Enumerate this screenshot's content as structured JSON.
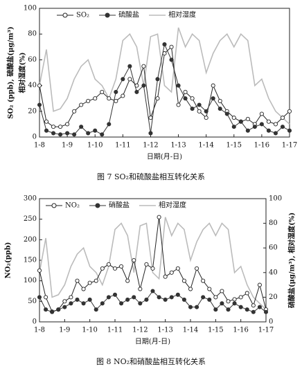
{
  "chart_data": [
    {
      "type": "line",
      "caption": "图 7 SO₂和硫酸盐相互转化关系",
      "xlabel": "日期(月-日)",
      "ylabel": "SO₂ (ppb), 硫酸盐(μg/m³)",
      "ylabel2": "相对湿度(%)",
      "x": [
        0,
        0.25,
        0.5,
        0.75,
        1,
        1.25,
        1.5,
        1.75,
        2,
        2.25,
        2.5,
        2.75,
        3,
        3.25,
        3.5,
        3.75,
        4,
        4.25,
        4.5,
        4.75,
        5,
        5.25,
        5.5,
        5.75,
        6,
        6.25,
        6.5,
        6.75,
        7,
        7.25,
        7.5,
        7.75,
        8,
        8.25,
        8.5,
        8.75,
        9
      ],
      "xlim": [
        0,
        9
      ],
      "xticks": [
        {
          "value": 0,
          "label": "1-8"
        },
        {
          "value": 1,
          "label": "1-9"
        },
        {
          "value": 2,
          "label": "1-10"
        },
        {
          "value": 3,
          "label": "1-11"
        },
        {
          "value": 4,
          "label": "1-12"
        },
        {
          "value": 5,
          "label": "1-13"
        },
        {
          "value": 6,
          "label": "1-14"
        },
        {
          "value": 7,
          "label": "1-15"
        },
        {
          "value": 8,
          "label": "1-16"
        },
        {
          "value": 9,
          "label": "1-17"
        }
      ],
      "ylim": [
        0,
        100
      ],
      "yticks": [
        0,
        20,
        40,
        60,
        80,
        100
      ],
      "series": [
        {
          "name": "SO₂",
          "color": "#222222",
          "marker": "open",
          "values": [
            40,
            12,
            8,
            8,
            10,
            20,
            25,
            28,
            30,
            35,
            30,
            28,
            32,
            45,
            40,
            55,
            15,
            30,
            65,
            70,
            25,
            35,
            30,
            20,
            15,
            40,
            28,
            20,
            15,
            12,
            14,
            10,
            18,
            12,
            10,
            15,
            20
          ]
        },
        {
          "name": "硫酸盐",
          "color": "#333333",
          "marker": "filled",
          "values": [
            25,
            5,
            3,
            2,
            3,
            2,
            8,
            3,
            5,
            2,
            10,
            35,
            45,
            55,
            35,
            40,
            3,
            45,
            72,
            60,
            40,
            30,
            22,
            25,
            20,
            30,
            22,
            18,
            8,
            12,
            5,
            8,
            10,
            5,
            3,
            8,
            5
          ]
        },
        {
          "name": "相对湿度",
          "color": "#bbbbbb",
          "marker": "none",
          "values": [
            40,
            68,
            20,
            22,
            30,
            45,
            55,
            60,
            45,
            40,
            30,
            45,
            75,
            80,
            70,
            40,
            78,
            80,
            40,
            35,
            85,
            70,
            80,
            75,
            50,
            65,
            75,
            80,
            70,
            80,
            75,
            40,
            45,
            30,
            20,
            15,
            10
          ]
        }
      ]
    },
    {
      "type": "line",
      "caption": "图 8 NO₂和硝酸盐相互转化关系",
      "xlabel": "日期(月-日)",
      "ylabel": "NO₂(ppb)",
      "y2label": "硝酸盐(μg/m³), 相对湿度(%)",
      "x": [
        0,
        0.25,
        0.5,
        0.75,
        1,
        1.25,
        1.5,
        1.75,
        2,
        2.25,
        2.5,
        2.75,
        3,
        3.25,
        3.5,
        3.75,
        4,
        4.25,
        4.5,
        4.75,
        5,
        5.25,
        5.5,
        5.75,
        6,
        6.25,
        6.5,
        6.75,
        7,
        7.25,
        7.5,
        7.75,
        8,
        8.25,
        8.5,
        8.75,
        9
      ],
      "xlim": [
        0,
        9
      ],
      "xticks": [
        {
          "value": 0,
          "label": "1-8"
        },
        {
          "value": 1,
          "label": "1-9"
        },
        {
          "value": 2,
          "label": "1-10"
        },
        {
          "value": 3,
          "label": "1-11"
        },
        {
          "value": 4,
          "label": "1-12"
        },
        {
          "value": 5,
          "label": "1-13"
        },
        {
          "value": 6,
          "label": "1-14"
        },
        {
          "value": 7,
          "label": "1-15"
        },
        {
          "value": 8,
          "label": "1-16"
        },
        {
          "value": 9,
          "label": "1-17"
        }
      ],
      "ylim": [
        0,
        300
      ],
      "yticks": [
        0,
        50,
        100,
        150,
        200,
        250,
        300
      ],
      "y2lim": [
        0,
        100
      ],
      "y2ticks": [
        0,
        20,
        40,
        60,
        80,
        100
      ],
      "series": [
        {
          "name": "NO₂",
          "color": "#222222",
          "marker": "open",
          "values": [
            125,
            60,
            25,
            30,
            50,
            60,
            100,
            80,
            95,
            100,
            130,
            140,
            130,
            135,
            100,
            150,
            80,
            140,
            130,
            255,
            110,
            120,
            130,
            100,
            80,
            130,
            100,
            80,
            60,
            75,
            50,
            55,
            60,
            70,
            40,
            90,
            30
          ]
        },
        {
          "name": "硝酸盐",
          "color": "#333333",
          "marker": "filled",
          "axis": "y2",
          "values": [
            20,
            10,
            8,
            10,
            12,
            15,
            18,
            15,
            18,
            10,
            15,
            20,
            22,
            15,
            18,
            20,
            15,
            18,
            25,
            20,
            18,
            20,
            22,
            18,
            12,
            12,
            20,
            18,
            10,
            15,
            10,
            15,
            12,
            10,
            8,
            12,
            8
          ]
        },
        {
          "name": "相对湿度",
          "color": "#bbbbbb",
          "marker": "none",
          "axis": "y2",
          "values": [
            40,
            68,
            20,
            22,
            30,
            45,
            55,
            60,
            45,
            40,
            30,
            45,
            75,
            80,
            70,
            40,
            78,
            80,
            40,
            35,
            85,
            70,
            80,
            75,
            50,
            65,
            75,
            80,
            70,
            80,
            75,
            40,
            45,
            30,
            20,
            15,
            10
          ]
        }
      ]
    }
  ]
}
